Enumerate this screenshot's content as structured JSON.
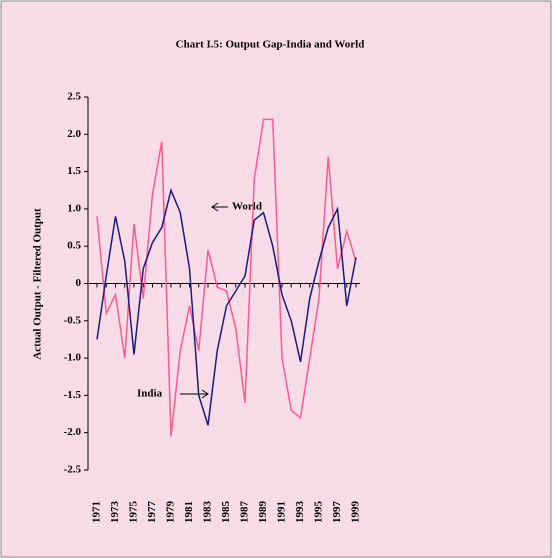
{
  "chart_data": {
    "type": "line",
    "title": "Chart I.5: Output Gap-India and World",
    "y_label": "Actual Output - Filtered Output",
    "categories": [
      "1971",
      null,
      "1973",
      null,
      "1975",
      null,
      "1977",
      null,
      "1979",
      null,
      "1981",
      null,
      "1983",
      null,
      "1985",
      null,
      "1987",
      null,
      "1989",
      null,
      "1991",
      null,
      "1993",
      null,
      "1995",
      null,
      "1997",
      null,
      "1999"
    ],
    "series": [
      {
        "name": "India",
        "color": "#ff5a8c",
        "values": [
          0.9,
          -0.4,
          -0.15,
          -1.0,
          0.8,
          -0.2,
          1.2,
          1.9,
          -2.05,
          -0.9,
          -0.3,
          -0.9,
          0.45,
          -0.05,
          -0.1,
          -0.6,
          -1.6,
          1.4,
          2.2,
          2.2,
          -1.0,
          -1.7,
          -1.8,
          -1.0,
          -0.2,
          1.7,
          0.2,
          0.7,
          0.3
        ]
      },
      {
        "name": "World",
        "color": "#1a1a80",
        "values": [
          -0.75,
          0.1,
          0.9,
          0.3,
          -0.95,
          0.2,
          0.55,
          0.75,
          1.25,
          0.95,
          0.2,
          -1.5,
          -1.9,
          -0.9,
          -0.3,
          -0.1,
          0.1,
          0.85,
          0.95,
          0.5,
          -0.15,
          -0.5,
          -1.05,
          -0.2,
          0.3,
          0.75,
          1.0,
          -0.3,
          0.35
        ]
      }
    ],
    "ylim": [
      -2.5,
      2.5
    ],
    "yticks": [
      2.5,
      {
        "value": 2.0,
        "label": "2.0"
      },
      1.5,
      {
        "value": 1.0,
        "label": "1.0"
      },
      0.5,
      0,
      -0.5,
      {
        "value": -1.0,
        "label": "-1.0"
      },
      -1.5,
      {
        "value": -2.0,
        "label": "-2.0"
      },
      -2.5
    ],
    "annotations": [
      "World",
      "India"
    ]
  }
}
